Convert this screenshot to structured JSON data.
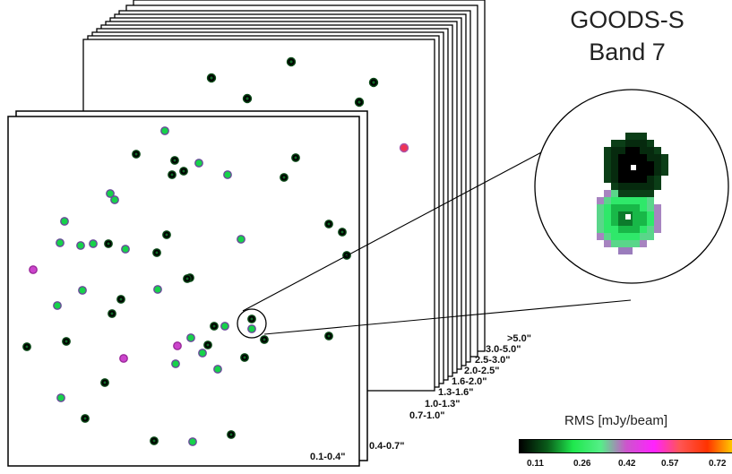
{
  "title": {
    "line1": "GOODS-S",
    "line2": "Band 7"
  },
  "panels": [
    "0.1-0.4\"",
    "0.4-0.7\"",
    "0.7-1.0\"",
    "1.0-1.3\"",
    "1.3-1.6\"",
    "1.6-2.0\"",
    "2.0-2.5\"",
    "2.5-3.0\"",
    "3.0-5.0\"",
    ">5.0\""
  ],
  "colorbar": {
    "title": "RMS  [mJy/beam]",
    "ticks": [
      "0.11",
      "0.26",
      "0.42",
      "0.57",
      "0.72"
    ],
    "colors": [
      "#000000",
      "#0a5c1a",
      "#1fe84d",
      "#55ee88",
      "#cc55cc",
      "#ff22ff",
      "#ff5555",
      "#ff3300",
      "#ffcc00"
    ]
  }
}
